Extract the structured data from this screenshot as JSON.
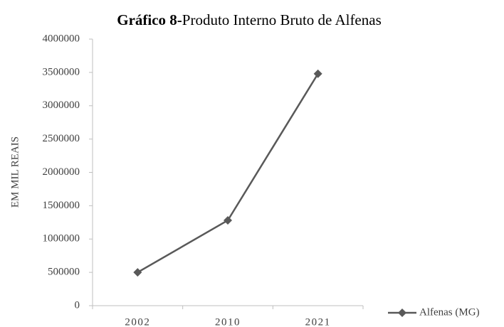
{
  "chart_data": {
    "type": "line",
    "title": [
      "Gráfico 8-",
      "Produto Interno Bruto de Alfenas"
    ],
    "y_label": "EM MIL REAIS",
    "categories": [
      "2002",
      "2010",
      "2021"
    ],
    "series": [
      {
        "name": "Alfenas (MG)",
        "color": "#595959",
        "values": [
          500000,
          1280000,
          3480000
        ]
      }
    ],
    "ylim": [
      0,
      4000000
    ],
    "yticks": [
      0,
      500000,
      1000000,
      1500000,
      2000000,
      2500000,
      3000000,
      3500000,
      4000000
    ],
    "legend": "bottom-right"
  }
}
